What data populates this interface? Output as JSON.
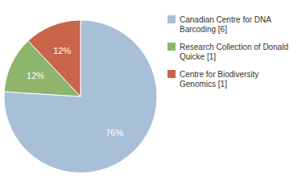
{
  "chart_data": {
    "type": "pie",
    "categories": [
      "Canadian Centre for DNA\nBarcoding [6]",
      "Research Collection of Donald\nQuicke [1]",
      "Centre for Biodiversity\nGenomics [1]"
    ],
    "values": [
      76,
      12,
      12
    ],
    "value_labels": [
      "76%",
      "12%",
      "12%"
    ],
    "colors": [
      "#a8bfd8",
      "#8db56b",
      "#c8654a"
    ],
    "data_labels": true,
    "legend": "right"
  }
}
